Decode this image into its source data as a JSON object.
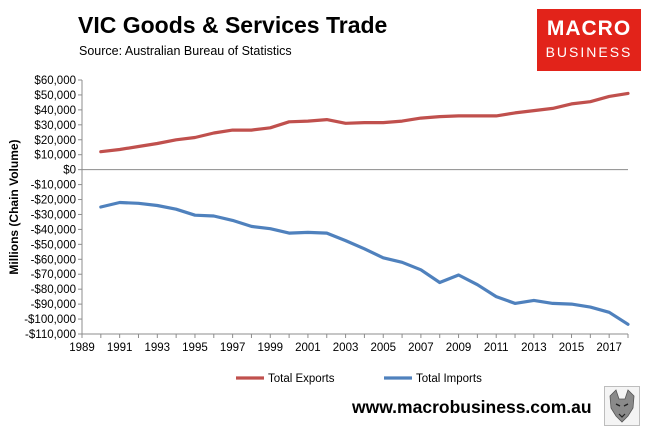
{
  "header": {
    "title": "VIC Goods & Services Trade",
    "source": "Source:  Australian Bureau of Statistics"
  },
  "logo": {
    "line1": "MACRO",
    "line2": "BUSINESS",
    "color": "#e2231a"
  },
  "footer": {
    "url": "www.macrobusiness.com.au"
  },
  "chart_data": {
    "type": "line",
    "title": "VIC Goods & Services Trade",
    "xlabel": "",
    "ylabel": "Millions (Chain Volume)",
    "ylim": [
      -110000,
      60000
    ],
    "yticks": [
      60000,
      50000,
      40000,
      30000,
      20000,
      10000,
      0,
      -10000,
      -20000,
      -30000,
      -40000,
      -50000,
      -60000,
      -70000,
      -80000,
      -90000,
      -100000,
      -110000
    ],
    "ytick_labels": [
      "$60,000",
      "$50,000",
      "$40,000",
      "$30,000",
      "$20,000",
      "$10,000",
      "$0",
      "-$10,000",
      "-$20,000",
      "-$30,000",
      "-$40,000",
      "-$50,000",
      "-$60,000",
      "-$70,000",
      "-$80,000",
      "-$90,000",
      "-$100,000",
      "-$110,000"
    ],
    "xlim": [
      1989,
      2018
    ],
    "xticks": [
      1989,
      1991,
      1993,
      1995,
      1997,
      1999,
      2001,
      2003,
      2005,
      2007,
      2009,
      2011,
      2013,
      2015,
      2017
    ],
    "x": [
      1990,
      1991,
      1992,
      1993,
      1994,
      1995,
      1996,
      1997,
      1998,
      1999,
      2000,
      2001,
      2002,
      2003,
      2004,
      2005,
      2006,
      2007,
      2008,
      2009,
      2010,
      2011,
      2012,
      2013,
      2014,
      2015,
      2016,
      2017,
      2018
    ],
    "series": [
      {
        "name": "Total Exports",
        "color": "#c0504d",
        "values": [
          12000,
          13500,
          15500,
          17500,
          20000,
          21500,
          24500,
          26500,
          26500,
          28000,
          32000,
          32500,
          33500,
          31000,
          31500,
          31500,
          32500,
          34500,
          35500,
          36000,
          36000,
          36000,
          38000,
          39500,
          41000,
          44000,
          45500,
          49000,
          51000
        ]
      },
      {
        "name": "Total Imports",
        "color": "#4f81bd",
        "values": [
          -25000,
          -22000,
          -22500,
          -24000,
          -26500,
          -30500,
          -31000,
          -34000,
          -38000,
          -39500,
          -42500,
          -42000,
          -42500,
          -47500,
          -53000,
          -59000,
          -62000,
          -67000,
          -75500,
          -70500,
          -77000,
          -85000,
          -89500,
          -87500,
          -89500,
          -90000,
          -92000,
          -95500,
          -103500
        ]
      }
    ],
    "legend": [
      "Total Exports",
      "Total Imports"
    ],
    "legend_position": "bottom",
    "grid": false
  }
}
